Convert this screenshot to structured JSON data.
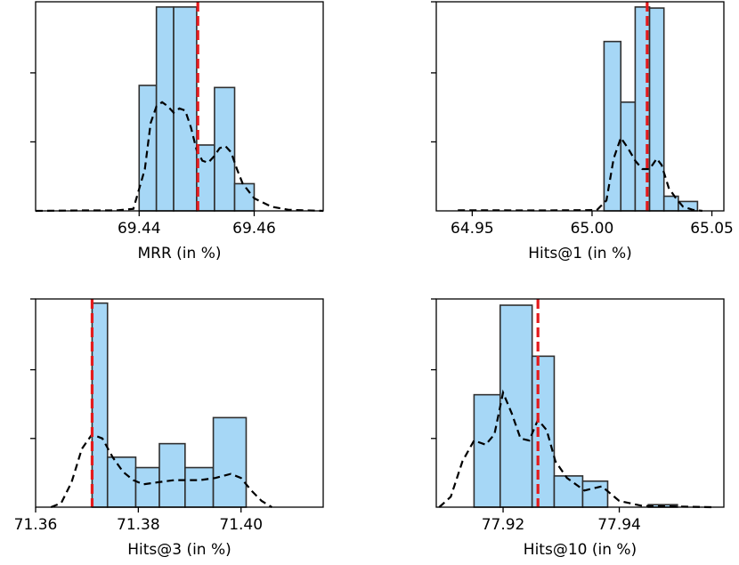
{
  "chart_data": [
    {
      "type": "histogram",
      "xlabel": "MRR (in %)",
      "xlim": [
        69.422,
        69.472
      ],
      "xticks": [
        69.44,
        69.46
      ],
      "xtick_labels": [
        "69.44",
        "69.46"
      ],
      "ylim": [
        0,
        1.0
      ],
      "yticks": [
        0.33,
        0.66
      ],
      "bins": [
        {
          "x0": 69.44,
          "x1": 69.443,
          "value": 0.6
        },
        {
          "x0": 69.443,
          "x1": 69.446,
          "value": 0.975
        },
        {
          "x0": 69.446,
          "x1": 69.45,
          "value": 0.975
        },
        {
          "x0": 69.45,
          "x1": 69.4531,
          "value": 0.315
        },
        {
          "x0": 69.4531,
          "x1": 69.4566,
          "value": 0.59
        },
        {
          "x0": 69.4566,
          "x1": 69.46,
          "value": 0.13
        }
      ],
      "kde": [
        [
          69.422,
          0.0
        ],
        [
          69.43,
          0.002
        ],
        [
          69.436,
          0.002
        ],
        [
          69.439,
          0.01
        ],
        [
          69.441,
          0.2
        ],
        [
          69.442,
          0.42
        ],
        [
          69.443,
          0.5
        ],
        [
          69.444,
          0.52
        ],
        [
          69.445,
          0.5
        ],
        [
          69.446,
          0.47
        ],
        [
          69.447,
          0.49
        ],
        [
          69.448,
          0.48
        ],
        [
          69.449,
          0.4
        ],
        [
          69.45,
          0.29
        ],
        [
          69.451,
          0.24
        ],
        [
          69.452,
          0.23
        ],
        [
          69.453,
          0.26
        ],
        [
          69.454,
          0.3
        ],
        [
          69.455,
          0.31
        ],
        [
          69.456,
          0.28
        ],
        [
          69.457,
          0.2
        ],
        [
          69.458,
          0.13
        ],
        [
          69.46,
          0.06
        ],
        [
          69.463,
          0.02
        ],
        [
          69.466,
          0.005
        ],
        [
          69.472,
          0.0
        ]
      ],
      "reference_value": 69.4502,
      "reference_color": "#e41a1c",
      "bar_color": "#a6d7f6",
      "bar_edge_color": "#2f2f2f"
    },
    {
      "type": "histogram",
      "xlabel": "Hits@1 (in %)",
      "xlim": [
        64.935,
        65.055
      ],
      "xticks": [
        64.95,
        65.0,
        65.05
      ],
      "xtick_labels": [
        "64.95",
        "65.00",
        "65.05"
      ],
      "ylim": [
        0,
        1.0
      ],
      "yticks": [
        0.33,
        0.66,
        1.0
      ],
      "bins": [
        {
          "x0": 65.005,
          "x1": 65.012,
          "value": 0.81
        },
        {
          "x0": 65.012,
          "x1": 65.018,
          "value": 0.52
        },
        {
          "x0": 65.018,
          "x1": 65.024,
          "value": 0.975
        },
        {
          "x0": 65.024,
          "x1": 65.03,
          "value": 0.97
        },
        {
          "x0": 65.03,
          "x1": 65.036,
          "value": 0.07
        },
        {
          "x0": 65.036,
          "x1": 65.044,
          "value": 0.045
        }
      ],
      "kde": [
        [
          64.944,
          0.003
        ],
        [
          64.98,
          0.002
        ],
        [
          65.002,
          0.004
        ],
        [
          65.006,
          0.05
        ],
        [
          65.009,
          0.25
        ],
        [
          65.012,
          0.35
        ],
        [
          65.015,
          0.3
        ],
        [
          65.018,
          0.24
        ],
        [
          65.021,
          0.2
        ],
        [
          65.024,
          0.2
        ],
        [
          65.027,
          0.25
        ],
        [
          65.029,
          0.22
        ],
        [
          65.032,
          0.11
        ],
        [
          65.035,
          0.06
        ],
        [
          65.038,
          0.02
        ],
        [
          65.042,
          0.005
        ],
        [
          65.046,
          0.0
        ]
      ],
      "reference_value": 65.023,
      "reference_color": "#e41a1c",
      "bar_color": "#a6d7f6",
      "bar_edge_color": "#2f2f2f"
    },
    {
      "type": "histogram",
      "xlabel": "Hits@3 (in %)",
      "xlim": [
        71.36,
        71.416
      ],
      "xticks": [
        71.36,
        71.38,
        71.4
      ],
      "xtick_labels": [
        "71.36",
        "71.38",
        "71.40"
      ],
      "ylim": [
        0,
        1.0
      ],
      "yticks": [
        0.33,
        0.66,
        1.0
      ],
      "bins": [
        {
          "x0": 71.371,
          "x1": 71.374,
          "value": 0.98
        },
        {
          "x0": 71.374,
          "x1": 71.3795,
          "value": 0.24
        },
        {
          "x0": 71.3795,
          "x1": 71.3841,
          "value": 0.19
        },
        {
          "x0": 71.3841,
          "x1": 71.3891,
          "value": 0.305
        },
        {
          "x0": 71.3891,
          "x1": 71.3946,
          "value": 0.19
        },
        {
          "x0": 71.3946,
          "x1": 71.401,
          "value": 0.43
        }
      ],
      "kde": [
        [
          71.363,
          0.0
        ],
        [
          71.365,
          0.02
        ],
        [
          71.367,
          0.12
        ],
        [
          71.369,
          0.28
        ],
        [
          71.371,
          0.35
        ],
        [
          71.373,
          0.33
        ],
        [
          71.375,
          0.24
        ],
        [
          71.377,
          0.17
        ],
        [
          71.379,
          0.13
        ],
        [
          71.381,
          0.11
        ],
        [
          71.384,
          0.12
        ],
        [
          71.387,
          0.13
        ],
        [
          71.389,
          0.13
        ],
        [
          71.392,
          0.13
        ],
        [
          71.395,
          0.14
        ],
        [
          71.398,
          0.16
        ],
        [
          71.4,
          0.14
        ],
        [
          71.402,
          0.08
        ],
        [
          71.404,
          0.03
        ],
        [
          71.406,
          0.0
        ]
      ],
      "reference_value": 71.371,
      "reference_color": "#e41a1c",
      "bar_color": "#a6d7f6",
      "bar_edge_color": "#2f2f2f"
    },
    {
      "type": "histogram",
      "xlabel": "Hits@10 (in %)",
      "xlim": [
        77.9085,
        77.958
      ],
      "xticks": [
        77.92,
        77.94
      ],
      "xtick_labels": [
        "77.92",
        "77.94"
      ],
      "ylim": [
        0,
        1.0
      ],
      "yticks": [
        0.33,
        0.66,
        1.0
      ],
      "bins": [
        {
          "x0": 77.915,
          "x1": 77.9195,
          "value": 0.54
        },
        {
          "x0": 77.9195,
          "x1": 77.925,
          "value": 0.97
        },
        {
          "x0": 77.925,
          "x1": 77.9288,
          "value": 0.725
        },
        {
          "x0": 77.9288,
          "x1": 77.9337,
          "value": 0.15
        },
        {
          "x0": 77.9337,
          "x1": 77.938,
          "value": 0.125
        },
        {
          "x0": 77.945,
          "x1": 77.95,
          "value": 0.012
        }
      ],
      "kde": [
        [
          77.909,
          0.0
        ],
        [
          77.911,
          0.05
        ],
        [
          77.913,
          0.22
        ],
        [
          77.915,
          0.32
        ],
        [
          77.917,
          0.3
        ],
        [
          77.9185,
          0.35
        ],
        [
          77.92,
          0.55
        ],
        [
          77.9215,
          0.45
        ],
        [
          77.923,
          0.33
        ],
        [
          77.9245,
          0.32
        ],
        [
          77.926,
          0.42
        ],
        [
          77.9275,
          0.37
        ],
        [
          77.929,
          0.22
        ],
        [
          77.931,
          0.14
        ],
        [
          77.934,
          0.08
        ],
        [
          77.937,
          0.1
        ],
        [
          77.94,
          0.03
        ],
        [
          77.944,
          0.006
        ],
        [
          77.95,
          0.003
        ],
        [
          77.956,
          0.0
        ]
      ],
      "reference_value": 77.926,
      "reference_color": "#e41a1c",
      "bar_color": "#a6d7f6",
      "bar_edge_color": "#2f2f2f"
    }
  ]
}
